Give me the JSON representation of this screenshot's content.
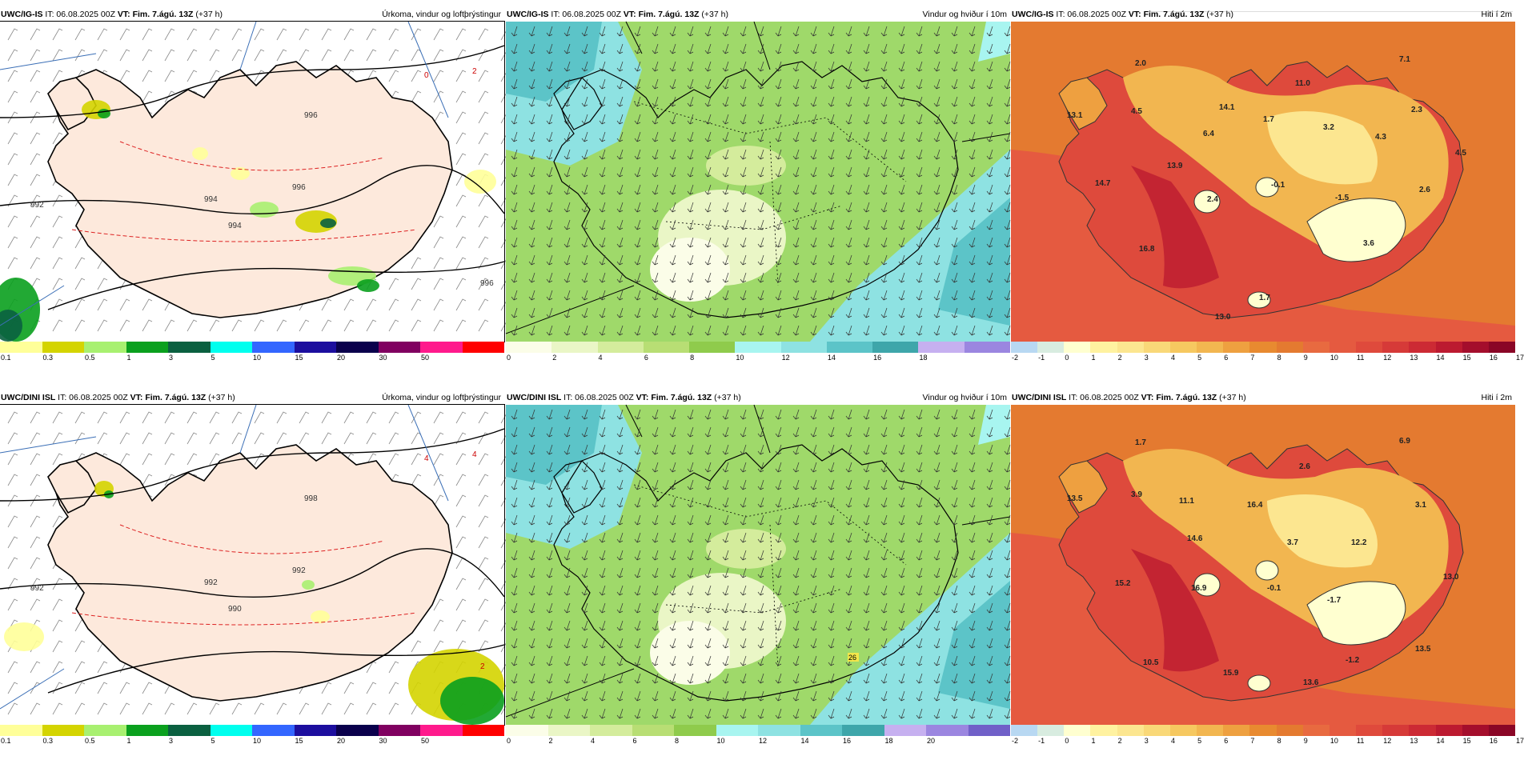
{
  "panels": [
    {
      "model": "UWC/IG-IS",
      "it": "IT: 06.08.2025 00Z",
      "vt": "VT: Fim. 7.ágú. 13Z",
      "lead": "(+37 h)",
      "title": "Úrkoma, vindur og loftþrýstingur",
      "kind": "precip",
      "colors": [
        "#ffff99",
        "#d4d400",
        "#a8f070",
        "#0aa01e",
        "#0a6040",
        "#00ffee",
        "#3366ff",
        "#1c0e9e",
        "#0a004c",
        "#800060",
        "#ff1a8c",
        "#ff0000"
      ],
      "ticks": [
        "0.1",
        "0.3",
        "0.5",
        "1",
        "3",
        "5",
        "10",
        "15",
        "20",
        "30",
        "50"
      ],
      "labels": [
        {
          "t": "992",
          "cls": "pres"
        },
        {
          "t": "994",
          "cls": "pres"
        },
        {
          "t": "996",
          "cls": "pres"
        },
        {
          "t": "994",
          "cls": "pres"
        },
        {
          "t": "996",
          "cls": "pres"
        },
        {
          "t": "996",
          "cls": "pres"
        },
        {
          "t": "0",
          "cls": "temp"
        },
        {
          "t": "2",
          "cls": "temp"
        }
      ]
    },
    {
      "model": "UWC/IG-IS",
      "it": "IT: 06.08.2025 00Z",
      "vt": "VT: Fim. 7.ágú. 13Z",
      "lead": "(+37 h)",
      "title": "Vindur og hviður í 10m",
      "kind": "wind",
      "colors": [
        "#fbfde8",
        "#eaf6c6",
        "#d4ec9c",
        "#b8de74",
        "#8fcb4c",
        "#a8f5f0",
        "#8ee2e2",
        "#5cc4c8",
        "#3ea6aa",
        "#c6b0f0",
        "#9b86e0"
      ],
      "ticks": [
        "0",
        "2",
        "4",
        "6",
        "8",
        "10",
        "12",
        "14",
        "16",
        "18"
      ],
      "labels": []
    },
    {
      "model": "UWC/IG-IS",
      "it": "IT: 06.08.2025 00Z",
      "vt": "VT: Fim. 7.ágú. 13Z",
      "lead": "(+37 h)",
      "title": "Hiti í 2m",
      "kind": "temp",
      "colors": [
        "#b8d8f2",
        "#d8ece0",
        "#ffffd0",
        "#fff2a0",
        "#fce690",
        "#f9d878",
        "#f6c860",
        "#f2b650",
        "#eea040",
        "#e88a30",
        "#e47a30",
        "#e86a40",
        "#e55a40",
        "#df4a3c",
        "#d63a38",
        "#cc2a34",
        "#bc1a30",
        "#a40e2c",
        "#8a0626"
      ],
      "ticks": [
        "-2",
        "-1",
        "0",
        "1",
        "2",
        "3",
        "4",
        "5",
        "6",
        "7",
        "8",
        "9",
        "10",
        "11",
        "12",
        "13",
        "14",
        "15",
        "16",
        "17"
      ],
      "labels": [
        {
          "t": "2.0"
        },
        {
          "t": "7.1"
        },
        {
          "t": "11.0"
        },
        {
          "t": "13.1"
        },
        {
          "t": "4.5"
        },
        {
          "t": "14.1"
        },
        {
          "t": "1.7"
        },
        {
          "t": "3.2"
        },
        {
          "t": "2.3"
        },
        {
          "t": "6.4"
        },
        {
          "t": "4.3"
        },
        {
          "t": "4.5"
        },
        {
          "t": "13.9"
        },
        {
          "t": "14.7"
        },
        {
          "t": "2.4"
        },
        {
          "t": "-0.1"
        },
        {
          "t": "-1.5"
        },
        {
          "t": "2.6"
        },
        {
          "t": "16.8"
        },
        {
          "t": "3.6"
        },
        {
          "t": "1.7"
        },
        {
          "t": "13.0"
        }
      ]
    },
    {
      "model": "UWC/DINI ISL",
      "it": "IT: 06.08.2025 00Z",
      "vt": "VT: Fim. 7.ágú. 13Z",
      "lead": "(+37 h)",
      "title": "Úrkoma, vindur og loftþrýstingur",
      "kind": "precip",
      "colors": [
        "#ffff99",
        "#d4d400",
        "#a8f070",
        "#0aa01e",
        "#0a6040",
        "#00ffee",
        "#3366ff",
        "#1c0e9e",
        "#0a004c",
        "#800060",
        "#ff1a8c",
        "#ff0000"
      ],
      "ticks": [
        "0.1",
        "0.3",
        "0.5",
        "1",
        "3",
        "5",
        "10",
        "15",
        "20",
        "30",
        "50"
      ],
      "labels": [
        {
          "t": "992",
          "cls": "pres"
        },
        {
          "t": "992",
          "cls": "pres"
        },
        {
          "t": "992",
          "cls": "pres"
        },
        {
          "t": "990",
          "cls": "pres"
        },
        {
          "t": "998",
          "cls": "pres"
        },
        {
          "t": "2",
          "cls": "temp"
        },
        {
          "t": "4",
          "cls": "temp"
        },
        {
          "t": "4",
          "cls": "temp"
        }
      ]
    },
    {
      "model": "UWC/DINI ISL",
      "it": "IT: 06.08.2025 00Z",
      "vt": "VT: Fim. 7.ágú. 13Z",
      "lead": "(+37 h)",
      "title": "Vindur og hviður í 10m",
      "kind": "wind",
      "colors": [
        "#fbfde8",
        "#eaf6c6",
        "#d4ec9c",
        "#b8de74",
        "#8fcb4c",
        "#a8f5f0",
        "#8ee2e2",
        "#5cc4c8",
        "#3ea6aa",
        "#c6b0f0",
        "#9b86e0",
        "#7060c8"
      ],
      "ticks": [
        "0",
        "2",
        "4",
        "6",
        "8",
        "10",
        "12",
        "14",
        "16",
        "18",
        "20"
      ],
      "labels": [
        {
          "t": "26"
        }
      ]
    },
    {
      "model": "UWC/DINI ISL",
      "it": "IT: 06.08.2025 00Z",
      "vt": "VT: Fim. 7.ágú. 13Z",
      "lead": "(+37 h)",
      "title": "Hiti í 2m",
      "kind": "temp",
      "colors": [
        "#b8d8f2",
        "#d8ece0",
        "#ffffd0",
        "#fff2a0",
        "#fce690",
        "#f9d878",
        "#f6c860",
        "#f2b650",
        "#eea040",
        "#e88a30",
        "#e47a30",
        "#e86a40",
        "#e55a40",
        "#df4a3c",
        "#d63a38",
        "#cc2a34",
        "#bc1a30",
        "#a40e2c",
        "#8a0626"
      ],
      "ticks": [
        "-2",
        "-1",
        "0",
        "1",
        "2",
        "3",
        "4",
        "5",
        "6",
        "7",
        "8",
        "9",
        "10",
        "11",
        "12",
        "13",
        "14",
        "15",
        "16",
        "17"
      ],
      "labels": [
        {
          "t": "1.7"
        },
        {
          "t": "6.9"
        },
        {
          "t": "2.6"
        },
        {
          "t": "13.5"
        },
        {
          "t": "3.9"
        },
        {
          "t": "11.1"
        },
        {
          "t": "16.4"
        },
        {
          "t": "3.1"
        },
        {
          "t": "14.6"
        },
        {
          "t": "3.7"
        },
        {
          "t": "12.2"
        },
        {
          "t": "13.0"
        },
        {
          "t": "15.2"
        },
        {
          "t": "16.9"
        },
        {
          "t": "-0.1"
        },
        {
          "t": "-1.7"
        },
        {
          "t": "13.5"
        },
        {
          "t": "10.5"
        },
        {
          "t": "15.9"
        },
        {
          "t": "13.6"
        },
        {
          "t": "-1.2"
        }
      ]
    }
  ]
}
